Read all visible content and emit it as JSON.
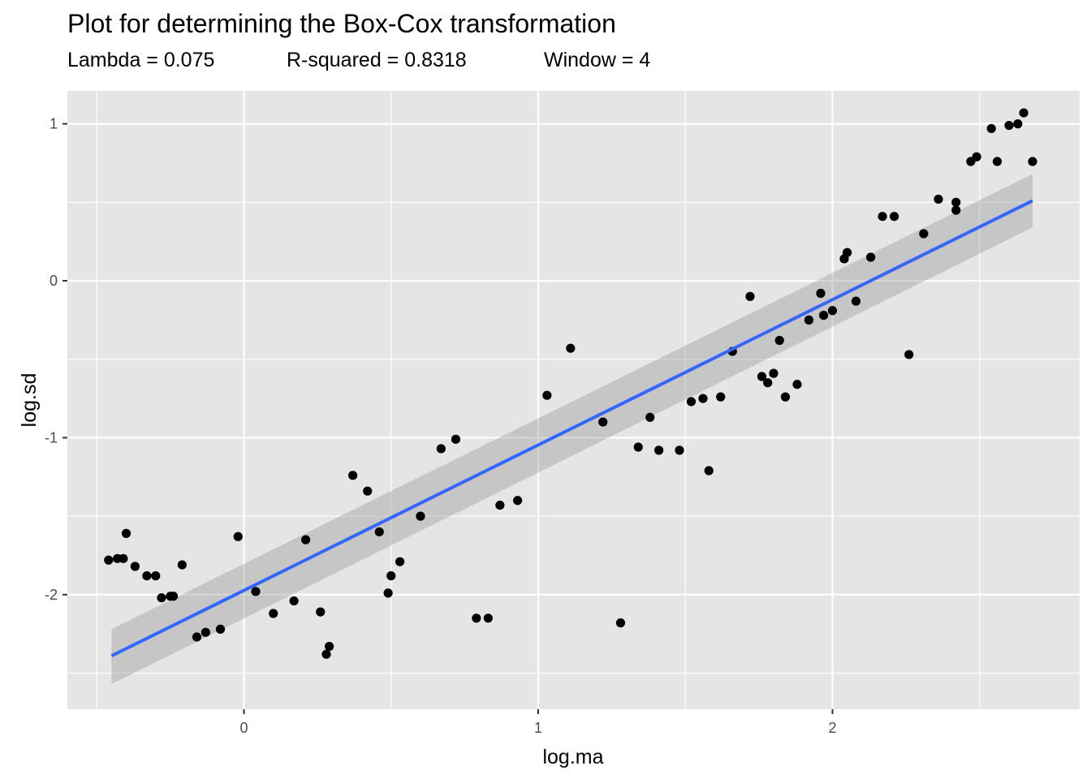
{
  "chart_data": {
    "type": "scatter",
    "title": "Plot for determining the Box-Cox transformation",
    "subtitle": {
      "lambda": "Lambda =  0.075",
      "rsquared": "R-squared =  0.8318",
      "window": "Window = 4"
    },
    "xlabel": "log.ma",
    "ylabel": "log.sd",
    "xlim": [
      -0.6,
      2.84
    ],
    "ylim": [
      -2.73,
      1.21
    ],
    "x_ticks": [
      0,
      1,
      2
    ],
    "x_tick_labels": [
      "0",
      "1",
      "2"
    ],
    "y_ticks": [
      -2,
      -1,
      0,
      1
    ],
    "y_tick_labels": [
      "-2",
      "-1",
      "0",
      "1"
    ],
    "grid": true,
    "legend": "none",
    "colors": {
      "panel": "#e5e5e5",
      "grid": "#ffffff",
      "points": "#000000",
      "fit_line": "#3366ff",
      "confidence_band": "#999999"
    },
    "fit": {
      "x": [
        -0.45,
        2.68
      ],
      "y": [
        -2.39,
        0.51
      ],
      "band_lower": [
        -2.57,
        0.34
      ],
      "band_upper": [
        -2.22,
        0.68
      ]
    },
    "points": [
      {
        "x": -0.46,
        "y": -1.78
      },
      {
        "x": -0.43,
        "y": -1.77
      },
      {
        "x": -0.41,
        "y": -1.77
      },
      {
        "x": -0.4,
        "y": -1.61
      },
      {
        "x": -0.37,
        "y": -1.82
      },
      {
        "x": -0.33,
        "y": -1.88
      },
      {
        "x": -0.3,
        "y": -1.88
      },
      {
        "x": -0.28,
        "y": -2.02
      },
      {
        "x": -0.25,
        "y": -2.01
      },
      {
        "x": -0.24,
        "y": -2.01
      },
      {
        "x": -0.21,
        "y": -1.81
      },
      {
        "x": -0.16,
        "y": -2.27
      },
      {
        "x": -0.13,
        "y": -2.24
      },
      {
        "x": -0.08,
        "y": -2.22
      },
      {
        "x": -0.02,
        "y": -1.63
      },
      {
        "x": 0.04,
        "y": -1.98
      },
      {
        "x": 0.1,
        "y": -2.12
      },
      {
        "x": 0.17,
        "y": -2.04
      },
      {
        "x": 0.21,
        "y": -1.65
      },
      {
        "x": 0.26,
        "y": -2.11
      },
      {
        "x": 0.28,
        "y": -2.38
      },
      {
        "x": 0.29,
        "y": -2.33
      },
      {
        "x": 0.37,
        "y": -1.24
      },
      {
        "x": 0.42,
        "y": -1.34
      },
      {
        "x": 0.46,
        "y": -1.6
      },
      {
        "x": 0.49,
        "y": -1.99
      },
      {
        "x": 0.5,
        "y": -1.88
      },
      {
        "x": 0.53,
        "y": -1.79
      },
      {
        "x": 0.6,
        "y": -1.5
      },
      {
        "x": 0.67,
        "y": -1.07
      },
      {
        "x": 0.72,
        "y": -1.01
      },
      {
        "x": 0.79,
        "y": -2.15
      },
      {
        "x": 0.83,
        "y": -2.15
      },
      {
        "x": 0.87,
        "y": -1.43
      },
      {
        "x": 0.93,
        "y": -1.4
      },
      {
        "x": 1.03,
        "y": -0.73
      },
      {
        "x": 1.11,
        "y": -0.43
      },
      {
        "x": 1.22,
        "y": -0.9
      },
      {
        "x": 1.28,
        "y": -2.18
      },
      {
        "x": 1.34,
        "y": -1.06
      },
      {
        "x": 1.38,
        "y": -0.87
      },
      {
        "x": 1.41,
        "y": -1.08
      },
      {
        "x": 1.48,
        "y": -1.08
      },
      {
        "x": 1.52,
        "y": -0.77
      },
      {
        "x": 1.56,
        "y": -0.75
      },
      {
        "x": 1.58,
        "y": -1.21
      },
      {
        "x": 1.62,
        "y": -0.74
      },
      {
        "x": 1.66,
        "y": -0.45
      },
      {
        "x": 1.72,
        "y": -0.1
      },
      {
        "x": 1.76,
        "y": -0.61
      },
      {
        "x": 1.78,
        "y": -0.65
      },
      {
        "x": 1.8,
        "y": -0.59
      },
      {
        "x": 1.82,
        "y": -0.38
      },
      {
        "x": 1.84,
        "y": -0.74
      },
      {
        "x": 1.88,
        "y": -0.66
      },
      {
        "x": 1.92,
        "y": -0.25
      },
      {
        "x": 1.96,
        "y": -0.08
      },
      {
        "x": 1.97,
        "y": -0.22
      },
      {
        "x": 2.0,
        "y": -0.19
      },
      {
        "x": 2.04,
        "y": 0.14
      },
      {
        "x": 2.05,
        "y": 0.18
      },
      {
        "x": 2.08,
        "y": -0.13
      },
      {
        "x": 2.13,
        "y": 0.15
      },
      {
        "x": 2.17,
        "y": 0.41
      },
      {
        "x": 2.21,
        "y": 0.41
      },
      {
        "x": 2.26,
        "y": -0.47
      },
      {
        "x": 2.31,
        "y": 0.3
      },
      {
        "x": 2.36,
        "y": 0.52
      },
      {
        "x": 2.42,
        "y": 0.5
      },
      {
        "x": 2.42,
        "y": 0.45
      },
      {
        "x": 2.47,
        "y": 0.76
      },
      {
        "x": 2.49,
        "y": 0.79
      },
      {
        "x": 2.54,
        "y": 0.97
      },
      {
        "x": 2.56,
        "y": 0.76
      },
      {
        "x": 2.6,
        "y": 0.99
      },
      {
        "x": 2.63,
        "y": 1.0
      },
      {
        "x": 2.65,
        "y": 1.07
      },
      {
        "x": 2.68,
        "y": 0.76
      }
    ]
  }
}
